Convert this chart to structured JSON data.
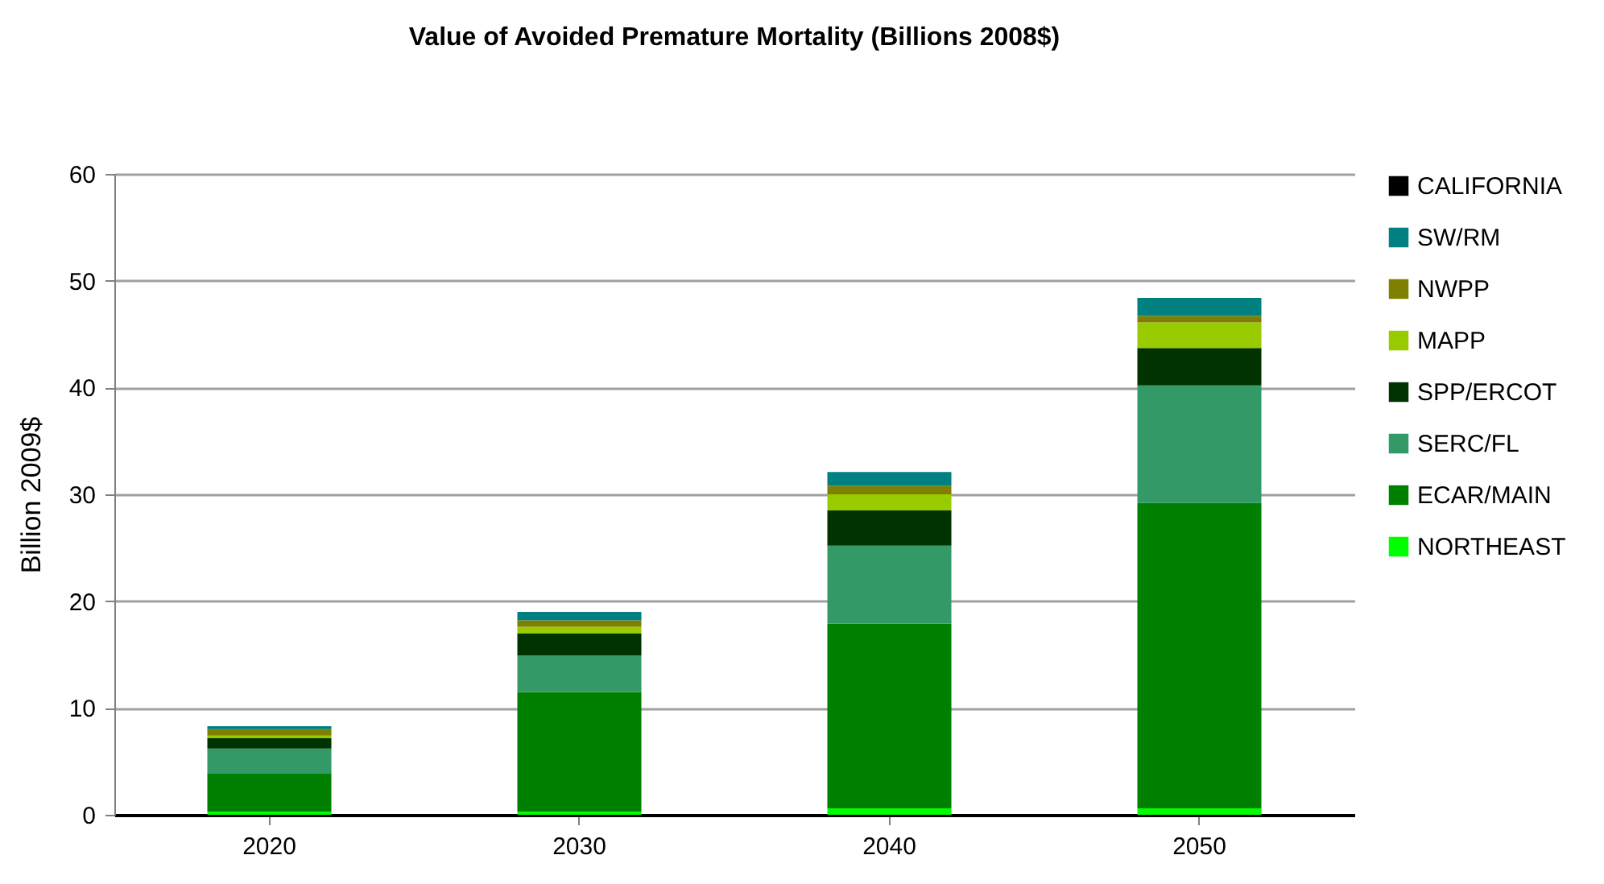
{
  "chart_data": {
    "type": "bar",
    "title": "Value of Avoided Premature Mortality (Billions 2008$)",
    "ylabel": "Billion 2009$",
    "categories": [
      "2020",
      "2030",
      "2040",
      "2050"
    ],
    "stacked": true,
    "ylim": [
      0,
      60
    ],
    "yticks": [
      0,
      10,
      20,
      30,
      40,
      50,
      60
    ],
    "grid": "y",
    "legend": "right",
    "series": [
      {
        "name": "NORTHEAST",
        "color": "#00ff00",
        "values": [
          0.3,
          0.3,
          0.6,
          0.6
        ]
      },
      {
        "name": "ECAR/MAIN",
        "color": "#008000",
        "values": [
          3.6,
          11.2,
          17.3,
          28.6
        ]
      },
      {
        "name": "SERC/FL",
        "color": "#339966",
        "values": [
          2.3,
          3.4,
          7.3,
          11.0
        ]
      },
      {
        "name": "SPP/ERCOT",
        "color": "#003300",
        "values": [
          1.0,
          2.1,
          3.3,
          3.5
        ]
      },
      {
        "name": "MAPP",
        "color": "#99cc00",
        "values": [
          0.2,
          0.6,
          1.5,
          2.4
        ]
      },
      {
        "name": "NWPP",
        "color": "#808000",
        "values": [
          0.6,
          0.6,
          0.8,
          0.6
        ]
      },
      {
        "name": "SW/RM",
        "color": "#008080",
        "values": [
          0.3,
          0.8,
          1.3,
          1.7
        ]
      },
      {
        "name": "CALIFORNIA",
        "color": "#000000",
        "values": [
          0,
          0,
          0,
          0
        ]
      }
    ]
  }
}
